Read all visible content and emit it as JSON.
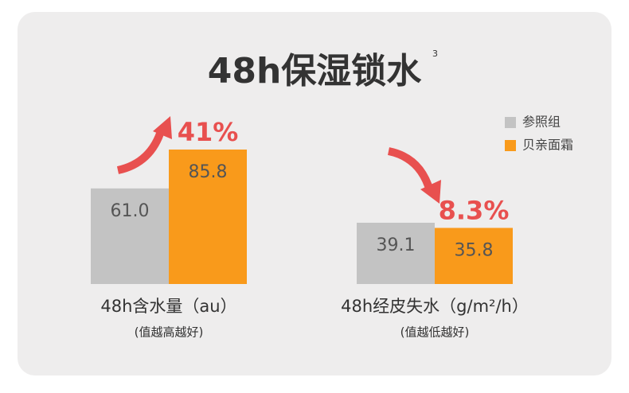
{
  "title": "48h保湿锁水",
  "footnote": "3",
  "legend": [
    {
      "name": "参照组",
      "color": "#c3c3c3"
    },
    {
      "name": "贝亲面霜",
      "color": "#f99a1b"
    }
  ],
  "chart_data": [
    {
      "type": "bar",
      "categories": [
        null
      ],
      "ylim": [
        0,
        100
      ],
      "series": [
        {
          "values": [
            61.0
          ],
          "value_labels": [
            "61.0"
          ]
        },
        {
          "values": [
            85.8
          ],
          "value_labels": [
            "85.8"
          ]
        }
      ],
      "annotation": "41%",
      "xlabel": "48h含水量（au）",
      "note": "(值越高越好)"
    },
    {
      "type": "bar",
      "categories": [
        null
      ],
      "ylim": [
        0,
        100
      ],
      "series": [
        {
          "values": [
            39.1
          ],
          "value_labels": [
            "39.1"
          ]
        },
        {
          "values": [
            35.8
          ],
          "value_labels": [
            "35.8"
          ]
        }
      ],
      "annotation": "8.3%",
      "xlabel": "48h经皮失水（g/m²/h）",
      "note": "(值越低越好)"
    }
  ]
}
